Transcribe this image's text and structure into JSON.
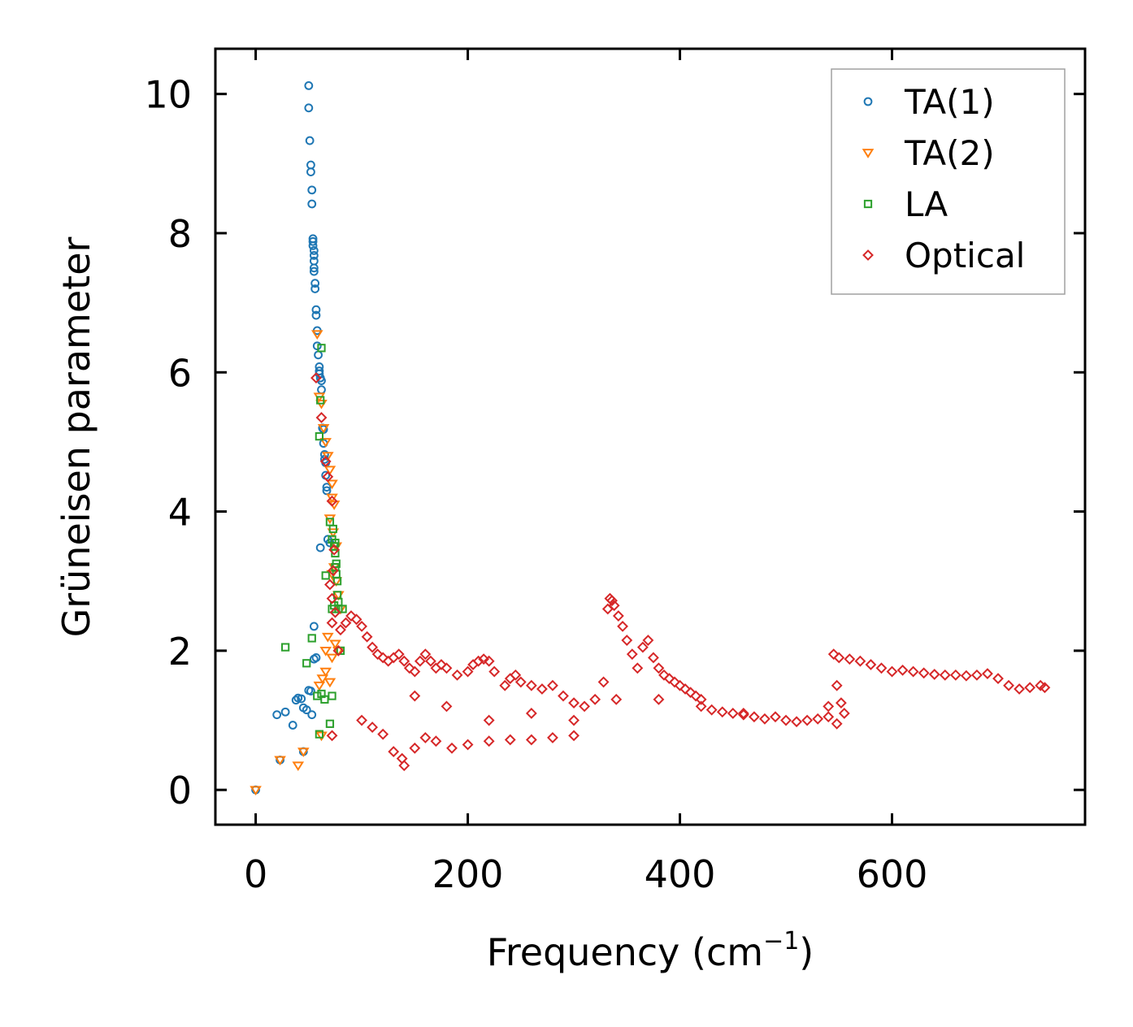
{
  "chart_data": {
    "type": "scatter",
    "xlabel": "Frequency (cm",
    "xlabel_sup": "−1",
    "xlabel_close": ")",
    "ylabel": "Grüneisen parameter",
    "xlim": [
      -38,
      782
    ],
    "ylim": [
      -0.5,
      10.65
    ],
    "xticks": [
      0,
      200,
      400,
      600
    ],
    "xtick_labels": [
      "0",
      "200",
      "400",
      "600"
    ],
    "yticks": [
      0,
      2,
      4,
      6,
      8,
      10
    ],
    "ytick_labels": [
      "0",
      "2",
      "4",
      "6",
      "8",
      "10"
    ],
    "legend_position": "top-right",
    "series": [
      {
        "name": "TA(1)",
        "marker": "circle",
        "color": "#1f77b4",
        "points": [
          [
            0,
            0
          ],
          [
            20,
            1.08
          ],
          [
            23,
            0.43
          ],
          [
            28,
            1.12
          ],
          [
            35,
            0.93
          ],
          [
            38,
            1.29
          ],
          [
            40,
            1.32
          ],
          [
            43,
            1.31
          ],
          [
            45,
            1.18
          ],
          [
            45,
            0.55
          ],
          [
            50,
            1.43
          ],
          [
            50,
            10.12
          ],
          [
            50,
            9.8
          ],
          [
            51,
            9.33
          ],
          [
            52,
            8.98
          ],
          [
            52,
            8.88
          ],
          [
            53,
            8.62
          ],
          [
            53,
            8.42
          ],
          [
            54,
            7.92
          ],
          [
            54,
            7.88
          ],
          [
            54,
            7.82
          ],
          [
            55,
            7.75
          ],
          [
            55,
            7.68
          ],
          [
            55,
            7.6
          ],
          [
            55,
            7.5
          ],
          [
            55,
            7.45
          ],
          [
            56,
            7.28
          ],
          [
            56,
            7.2
          ],
          [
            57,
            6.9
          ],
          [
            57,
            6.82
          ],
          [
            58,
            6.6
          ],
          [
            58,
            6.38
          ],
          [
            59,
            6.25
          ],
          [
            60,
            6.08
          ],
          [
            60,
            6.02
          ],
          [
            60,
            5.98
          ],
          [
            61,
            5.92
          ],
          [
            62,
            5.88
          ],
          [
            62,
            5.75
          ],
          [
            63,
            5.2
          ],
          [
            64,
            5.18
          ],
          [
            64,
            4.98
          ],
          [
            65,
            4.82
          ],
          [
            65,
            4.75
          ],
          [
            66,
            4.7
          ],
          [
            66,
            4.52
          ],
          [
            67,
            4.35
          ],
          [
            67,
            4.3
          ],
          [
            68,
            3.6
          ],
          [
            70,
            3.55
          ],
          [
            61,
            3.48
          ],
          [
            55,
            2.35
          ],
          [
            57,
            1.9
          ],
          [
            55,
            1.88
          ],
          [
            52,
            1.42
          ],
          [
            53,
            1.08
          ],
          [
            48,
            1.15
          ]
        ]
      },
      {
        "name": "TA(2)",
        "marker": "triangle-down",
        "color": "#ff7f0e",
        "points": [
          [
            0,
            0
          ],
          [
            23,
            0.43
          ],
          [
            40,
            0.35
          ],
          [
            45,
            0.55
          ],
          [
            60,
            1.5
          ],
          [
            63,
            1.6
          ],
          [
            66,
            1.7
          ],
          [
            70,
            1.55
          ],
          [
            62,
            0.78
          ],
          [
            66,
            2.0
          ],
          [
            68,
            2.2
          ],
          [
            72,
            1.9
          ],
          [
            75,
            2.1
          ],
          [
            78,
            2.0
          ],
          [
            60,
            5.65
          ],
          [
            62,
            5.55
          ],
          [
            64,
            5.2
          ],
          [
            66,
            5.0
          ],
          [
            68,
            4.8
          ],
          [
            70,
            4.6
          ],
          [
            72,
            4.4
          ],
          [
            72,
            4.2
          ],
          [
            74,
            4.1
          ],
          [
            70,
            3.9
          ],
          [
            73,
            3.7
          ],
          [
            76,
            3.5
          ],
          [
            74,
            3.2
          ],
          [
            72,
            3.1
          ],
          [
            76,
            3.0
          ],
          [
            78,
            2.8
          ],
          [
            80,
            2.6
          ],
          [
            58,
            6.55
          ]
        ]
      },
      {
        "name": "LA",
        "marker": "square",
        "color": "#2ca02c",
        "points": [
          [
            28,
            2.05
          ],
          [
            48,
            1.82
          ],
          [
            53,
            2.18
          ],
          [
            58,
            1.35
          ],
          [
            60,
            0.8
          ],
          [
            62,
            1.38
          ],
          [
            65,
            1.3
          ],
          [
            70,
            0.95
          ],
          [
            72,
            1.35
          ],
          [
            60,
            5.08
          ],
          [
            61,
            5.6
          ],
          [
            62,
            6.35
          ],
          [
            70,
            3.85
          ],
          [
            72,
            3.6
          ],
          [
            74,
            3.5
          ],
          [
            75,
            3.4
          ],
          [
            75,
            3.2
          ],
          [
            76,
            3.1
          ],
          [
            77,
            3.0
          ],
          [
            77,
            2.8
          ],
          [
            78,
            2.7
          ],
          [
            78,
            2.6
          ],
          [
            74,
            2.65
          ],
          [
            72,
            2.6
          ],
          [
            76,
            3.25
          ],
          [
            75,
            3.55
          ],
          [
            73,
            3.75
          ],
          [
            66,
            3.08
          ],
          [
            80,
            2.0
          ],
          [
            82,
            2.6
          ]
        ]
      },
      {
        "name": "Optical",
        "marker": "diamond",
        "color": "#d62728",
        "points": [
          [
            57,
            5.92
          ],
          [
            62,
            5.35
          ],
          [
            66,
            4.72
          ],
          [
            68,
            4.5
          ],
          [
            72,
            4.15
          ],
          [
            74,
            3.45
          ],
          [
            73,
            3.15
          ],
          [
            70,
            2.95
          ],
          [
            72,
            2.75
          ],
          [
            75,
            2.55
          ],
          [
            72,
            2.4
          ],
          [
            78,
            2.0
          ],
          [
            72,
            0.78
          ],
          [
            80,
            2.3
          ],
          [
            85,
            2.4
          ],
          [
            90,
            2.5
          ],
          [
            95,
            2.45
          ],
          [
            100,
            2.35
          ],
          [
            105,
            2.2
          ],
          [
            110,
            2.05
          ],
          [
            115,
            1.95
          ],
          [
            120,
            1.9
          ],
          [
            125,
            1.85
          ],
          [
            130,
            1.9
          ],
          [
            135,
            1.95
          ],
          [
            140,
            1.85
          ],
          [
            145,
            1.75
          ],
          [
            150,
            1.7
          ],
          [
            155,
            1.85
          ],
          [
            160,
            1.95
          ],
          [
            165,
            1.85
          ],
          [
            170,
            1.75
          ],
          [
            175,
            1.8
          ],
          [
            180,
            1.75
          ],
          [
            190,
            1.65
          ],
          [
            200,
            1.7
          ],
          [
            205,
            1.8
          ],
          [
            210,
            1.85
          ],
          [
            215,
            1.88
          ],
          [
            220,
            1.85
          ],
          [
            225,
            1.7
          ],
          [
            235,
            1.5
          ],
          [
            240,
            1.6
          ],
          [
            245,
            1.65
          ],
          [
            250,
            1.55
          ],
          [
            260,
            1.5
          ],
          [
            270,
            1.45
          ],
          [
            280,
            1.5
          ],
          [
            290,
            1.35
          ],
          [
            300,
            1.25
          ],
          [
            310,
            1.2
          ],
          [
            320,
            1.3
          ],
          [
            328,
            1.55
          ],
          [
            332,
            2.6
          ],
          [
            334,
            2.75
          ],
          [
            336,
            2.72
          ],
          [
            338,
            2.65
          ],
          [
            342,
            2.5
          ],
          [
            346,
            2.35
          ],
          [
            350,
            2.15
          ],
          [
            355,
            1.95
          ],
          [
            360,
            1.75
          ],
          [
            365,
            2.05
          ],
          [
            370,
            2.15
          ],
          [
            375,
            1.9
          ],
          [
            380,
            1.75
          ],
          [
            385,
            1.65
          ],
          [
            390,
            1.6
          ],
          [
            395,
            1.55
          ],
          [
            400,
            1.5
          ],
          [
            405,
            1.45
          ],
          [
            410,
            1.4
          ],
          [
            415,
            1.35
          ],
          [
            420,
            1.3
          ],
          [
            430,
            1.15
          ],
          [
            440,
            1.12
          ],
          [
            450,
            1.1
          ],
          [
            460,
            1.08
          ],
          [
            470,
            1.05
          ],
          [
            480,
            1.02
          ],
          [
            490,
            1.05
          ],
          [
            500,
            1.0
          ],
          [
            510,
            0.98
          ],
          [
            520,
            1.0
          ],
          [
            530,
            1.02
          ],
          [
            540,
            1.05
          ],
          [
            545,
            1.95
          ],
          [
            550,
            1.9
          ],
          [
            560,
            1.88
          ],
          [
            570,
            1.85
          ],
          [
            580,
            1.8
          ],
          [
            590,
            1.75
          ],
          [
            600,
            1.7
          ],
          [
            610,
            1.72
          ],
          [
            620,
            1.7
          ],
          [
            630,
            1.68
          ],
          [
            640,
            1.66
          ],
          [
            650,
            1.65
          ],
          [
            660,
            1.65
          ],
          [
            670,
            1.64
          ],
          [
            680,
            1.65
          ],
          [
            690,
            1.67
          ],
          [
            700,
            1.6
          ],
          [
            710,
            1.5
          ],
          [
            720,
            1.45
          ],
          [
            730,
            1.47
          ],
          [
            740,
            1.5
          ],
          [
            744,
            1.47
          ],
          [
            140,
            0.35
          ],
          [
            138,
            0.45
          ],
          [
            130,
            0.55
          ],
          [
            150,
            0.6
          ],
          [
            160,
            0.75
          ],
          [
            120,
            0.8
          ],
          [
            110,
            0.9
          ],
          [
            100,
            1.0
          ],
          [
            170,
            0.7
          ],
          [
            185,
            0.6
          ],
          [
            200,
            0.65
          ],
          [
            220,
            0.7
          ],
          [
            240,
            0.72
          ],
          [
            260,
            0.72
          ],
          [
            280,
            0.75
          ],
          [
            300,
            0.78
          ],
          [
            150,
            1.35
          ],
          [
            180,
            1.2
          ],
          [
            220,
            1.0
          ],
          [
            260,
            1.1
          ],
          [
            300,
            1.0
          ],
          [
            340,
            1.3
          ],
          [
            380,
            1.3
          ],
          [
            420,
            1.2
          ],
          [
            460,
            1.1
          ],
          [
            548,
            0.95
          ],
          [
            540,
            1.2
          ],
          [
            548,
            1.5
          ],
          [
            552,
            1.25
          ],
          [
            555,
            1.1
          ]
        ]
      }
    ]
  }
}
